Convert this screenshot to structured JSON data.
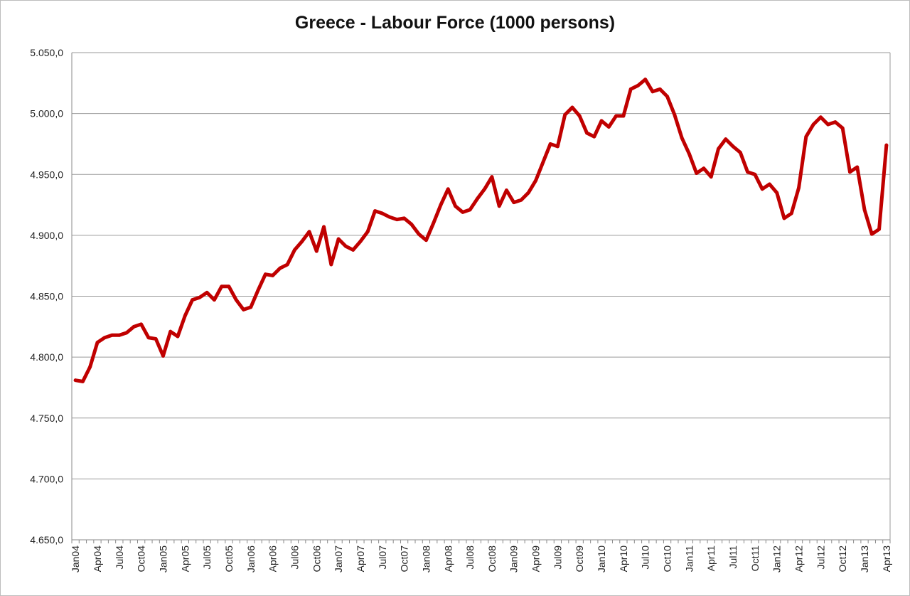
{
  "chart_data": {
    "type": "line",
    "title": "Greece - Labour Force (1000 persons)",
    "xlabel": "",
    "ylabel": "",
    "ylim": [
      4650,
      5050
    ],
    "yticks": [
      4650,
      4700,
      4750,
      4800,
      4850,
      4900,
      4950,
      5000,
      5050
    ],
    "ytick_labels": [
      "4.650,0",
      "4.700,0",
      "4.750,0",
      "4.800,0",
      "4.850,0",
      "4.900,0",
      "4.950,0",
      "5.000,0",
      "5.050,0"
    ],
    "grid": "horizontal",
    "legend": "none",
    "color": "#c00000",
    "x_tick_labels": [
      "Jan04",
      "Apr04",
      "Jul04",
      "Oct04",
      "Jan05",
      "Apr05",
      "Jul05",
      "Oct05",
      "Jan06",
      "Apr06",
      "Jul06",
      "Oct06",
      "Jan07",
      "Apr07",
      "Jul07",
      "Oct07",
      "Jan08",
      "Apr08",
      "Jul08",
      "Oct08",
      "Jan09",
      "Apr09",
      "Jul09",
      "Oct09",
      "Jan10",
      "Apr10",
      "Jul10",
      "Oct10",
      "Jan11",
      "Apr11",
      "Jul11",
      "Oct11",
      "Jan12",
      "Apr12",
      "Jul12",
      "Oct12",
      "Jan13",
      "Apr13"
    ],
    "series": [
      {
        "x": [
          "Jan04",
          "Feb04",
          "Mar04",
          "Apr04",
          "May04",
          "Jun04",
          "Jul04",
          "Aug04",
          "Sep04",
          "Oct04",
          "Nov04",
          "Dec04",
          "Jan05",
          "Feb05",
          "Mar05",
          "Apr05",
          "May05",
          "Jun05",
          "Jul05",
          "Aug05",
          "Sep05",
          "Oct05",
          "Nov05",
          "Dec05",
          "Jan06",
          "Feb06",
          "Mar06",
          "Apr06",
          "May06",
          "Jun06",
          "Jul06",
          "Aug06",
          "Sep06",
          "Oct06",
          "Nov06",
          "Dec06",
          "Jan07",
          "Feb07",
          "Mar07",
          "Apr07",
          "May07",
          "Jun07",
          "Jul07",
          "Aug07",
          "Sep07",
          "Oct07",
          "Nov07",
          "Dec07",
          "Jan08",
          "Feb08",
          "Mar08",
          "Apr08",
          "May08",
          "Jun08",
          "Jul08",
          "Aug08",
          "Sep08",
          "Oct08",
          "Nov08",
          "Dec08",
          "Jan09",
          "Feb09",
          "Mar09",
          "Apr09",
          "May09",
          "Jun09",
          "Jul09",
          "Aug09",
          "Sep09",
          "Oct09",
          "Nov09",
          "Dec09",
          "Jan10",
          "Feb10",
          "Mar10",
          "Apr10",
          "May10",
          "Jun10",
          "Jul10",
          "Aug10",
          "Sep10",
          "Oct10",
          "Nov10",
          "Dec10",
          "Jan11",
          "Feb11",
          "Mar11",
          "Apr11",
          "May11",
          "Jun11",
          "Jul11",
          "Aug11",
          "Sep11",
          "Oct11",
          "Nov11",
          "Dec11",
          "Jan12",
          "Feb12",
          "Mar12",
          "Apr12",
          "May12",
          "Jun12",
          "Jul12",
          "Aug12",
          "Sep12",
          "Oct12",
          "Nov12",
          "Dec12",
          "Jan13",
          "Feb13",
          "Mar13",
          "Apr13"
        ],
        "values": [
          4781,
          4780,
          4792,
          4812,
          4816,
          4818,
          4818,
          4820,
          4825,
          4827,
          4816,
          4815,
          4801,
          4821,
          4817,
          4834,
          4847,
          4849,
          4853,
          4847,
          4858,
          4858,
          4847,
          4839,
          4841,
          4855,
          4868,
          4867,
          4873,
          4876,
          4888,
          4895,
          4903,
          4887,
          4907,
          4876,
          4897,
          4891,
          4888,
          4895,
          4903,
          4920,
          4918,
          4915,
          4913,
          4914,
          4909,
          4901,
          4896,
          4910,
          4925,
          4938,
          4924,
          4919,
          4921,
          4930,
          4938,
          4948,
          4924,
          4937,
          4927,
          4929,
          4935,
          4945,
          4960,
          4975,
          4973,
          4999,
          5005,
          4998,
          4984,
          4981,
          4994,
          4989,
          4998,
          4998,
          5020,
          5023,
          5028,
          5018,
          5020,
          5014,
          4999,
          4980,
          4967,
          4951,
          4955,
          4948,
          4971,
          4979,
          4973,
          4968,
          4952,
          4950,
          4938,
          4942,
          4935,
          4914,
          4918,
          4939,
          4981,
          4991,
          4997,
          4991,
          4993,
          4988,
          4952,
          4956,
          4921,
          4901,
          4905,
          4974
        ]
      }
    ]
  }
}
